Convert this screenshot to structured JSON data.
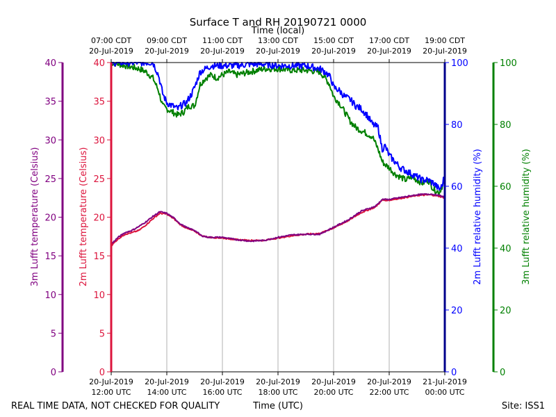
{
  "chart_data": {
    "type": "line",
    "title": "Surface T and RH 20190721 0000",
    "top_axis_label": "Time (local)",
    "xlabel": "Time (UTC)",
    "footer_left": "REAL TIME DATA, NOT CHECKED FOR QUALITY",
    "footer_right": "Site: ISS1",
    "x_range_hours": [
      12,
      24
    ],
    "bottom_ticks": [
      {
        "h": 12,
        "l1": "20-Jul-2019",
        "l2": "12:00 UTC"
      },
      {
        "h": 14,
        "l1": "20-Jul-2019",
        "l2": "14:00 UTC"
      },
      {
        "h": 16,
        "l1": "20-Jul-2019",
        "l2": "16:00 UTC"
      },
      {
        "h": 18,
        "l1": "20-Jul-2019",
        "l2": "18:00 UTC"
      },
      {
        "h": 20,
        "l1": "20-Jul-2019",
        "l2": "20:00 UTC"
      },
      {
        "h": 22,
        "l1": "20-Jul-2019",
        "l2": "22:00 UTC"
      },
      {
        "h": 24,
        "l1": "21-Jul-2019",
        "l2": "00:00 UTC"
      }
    ],
    "top_ticks": [
      {
        "h": 12,
        "l1": "07:00 CDT",
        "l2": "20-Jul-2019"
      },
      {
        "h": 14,
        "l1": "09:00 CDT",
        "l2": "20-Jul-2019"
      },
      {
        "h": 16,
        "l1": "11:00 CDT",
        "l2": "20-Jul-2019"
      },
      {
        "h": 18,
        "l1": "13:00 CDT",
        "l2": "20-Jul-2019"
      },
      {
        "h": 20,
        "l1": "15:00 CDT",
        "l2": "20-Jul-2019"
      },
      {
        "h": 22,
        "l1": "17:00 CDT",
        "l2": "20-Jul-2019"
      },
      {
        "h": 24,
        "l1": "19:00 CDT",
        "l2": "20-Jul-2019"
      }
    ],
    "axes": {
      "t3m": {
        "label": "3m Lufft temperature (Celsius)",
        "range": [
          0,
          40
        ],
        "ticks": [
          0,
          5,
          10,
          15,
          20,
          25,
          30,
          35,
          40
        ],
        "color": "#800080"
      },
      "t2m": {
        "label": "2m Lufft temperature (Celsius)",
        "range": [
          0,
          40
        ],
        "ticks": [
          0,
          5,
          10,
          15,
          20,
          25,
          30,
          35,
          40
        ],
        "color": "#dc143c"
      },
      "rh2m": {
        "label": "2m Lufft relative humidity (%)",
        "range": [
          0,
          100
        ],
        "ticks": [
          0,
          20,
          40,
          60,
          80,
          100
        ],
        "color": "#0000ff"
      },
      "rh3m": {
        "label": "3m Lufft relative humidity (%)",
        "range": [
          0,
          100
        ],
        "ticks": [
          0,
          20,
          40,
          60,
          80,
          100
        ],
        "color": "#008000"
      }
    },
    "series": [
      {
        "name": "2m Lufft temperature",
        "axis": "t2m",
        "color": "#dc143c",
        "points": [
          [
            12.0,
            16.3
          ],
          [
            12.25,
            17.2
          ],
          [
            12.5,
            17.8
          ],
          [
            12.75,
            18.0
          ],
          [
            13.0,
            18.3
          ],
          [
            13.25,
            19.0
          ],
          [
            13.5,
            19.8
          ],
          [
            13.75,
            20.5
          ],
          [
            14.0,
            20.4
          ],
          [
            14.25,
            19.8
          ],
          [
            14.5,
            19.0
          ],
          [
            14.75,
            18.5
          ],
          [
            15.0,
            18.2
          ],
          [
            15.25,
            17.6
          ],
          [
            15.5,
            17.4
          ],
          [
            16.0,
            17.3
          ],
          [
            16.5,
            17.1
          ],
          [
            17.0,
            17.0
          ],
          [
            17.5,
            17.0
          ],
          [
            18.0,
            17.3
          ],
          [
            18.5,
            17.6
          ],
          [
            19.0,
            17.8
          ],
          [
            19.5,
            17.9
          ],
          [
            20.0,
            18.6
          ],
          [
            20.5,
            19.5
          ],
          [
            21.0,
            20.6
          ],
          [
            21.5,
            21.3
          ],
          [
            21.75,
            22.2
          ],
          [
            22.0,
            22.2
          ],
          [
            22.5,
            22.5
          ],
          [
            23.0,
            22.8
          ],
          [
            23.5,
            22.9
          ],
          [
            23.8,
            22.7
          ],
          [
            24.0,
            22.5
          ]
        ]
      },
      {
        "name": "3m Lufft temperature",
        "axis": "t3m",
        "color": "#800080",
        "points": [
          [
            12.0,
            16.5
          ],
          [
            12.25,
            17.4
          ],
          [
            12.5,
            18.0
          ],
          [
            12.75,
            18.3
          ],
          [
            13.0,
            18.8
          ],
          [
            13.25,
            19.4
          ],
          [
            13.5,
            20.1
          ],
          [
            13.75,
            20.7
          ],
          [
            14.0,
            20.5
          ],
          [
            14.25,
            19.9
          ],
          [
            14.5,
            19.1
          ],
          [
            14.75,
            18.6
          ],
          [
            15.0,
            18.3
          ],
          [
            15.25,
            17.6
          ],
          [
            15.5,
            17.4
          ],
          [
            16.0,
            17.4
          ],
          [
            16.5,
            17.1
          ],
          [
            17.0,
            16.9
          ],
          [
            17.5,
            17.0
          ],
          [
            18.0,
            17.4
          ],
          [
            18.5,
            17.7
          ],
          [
            19.0,
            17.8
          ],
          [
            19.5,
            17.8
          ],
          [
            20.0,
            18.7
          ],
          [
            20.5,
            19.6
          ],
          [
            21.0,
            20.8
          ],
          [
            21.5,
            21.4
          ],
          [
            21.75,
            22.3
          ],
          [
            22.0,
            22.3
          ],
          [
            22.5,
            22.6
          ],
          [
            23.0,
            22.9
          ],
          [
            23.5,
            23.0
          ],
          [
            23.8,
            22.8
          ],
          [
            24.0,
            22.6
          ]
        ]
      },
      {
        "name": "2m Lufft relative humidity",
        "axis": "rh2m",
        "color": "#0000ff",
        "points": [
          [
            12.0,
            100
          ],
          [
            13.0,
            100
          ],
          [
            13.5,
            100
          ],
          [
            13.7,
            96
          ],
          [
            13.85,
            90
          ],
          [
            14.0,
            87
          ],
          [
            14.2,
            86
          ],
          [
            14.4,
            85
          ],
          [
            14.5,
            86
          ],
          [
            14.7,
            87
          ],
          [
            14.9,
            90
          ],
          [
            15.0,
            92
          ],
          [
            15.2,
            97
          ],
          [
            15.4,
            98
          ],
          [
            15.6,
            99
          ],
          [
            16.0,
            99
          ],
          [
            16.5,
            99
          ],
          [
            17.0,
            99.5
          ],
          [
            17.5,
            99.5
          ],
          [
            18.0,
            99
          ],
          [
            18.5,
            99
          ],
          [
            19.0,
            99
          ],
          [
            19.5,
            98
          ],
          [
            19.7,
            97
          ],
          [
            19.9,
            95
          ],
          [
            20.0,
            92
          ],
          [
            20.2,
            91
          ],
          [
            20.4,
            89
          ],
          [
            20.6,
            88
          ],
          [
            20.8,
            86
          ],
          [
            21.0,
            85
          ],
          [
            21.2,
            83
          ],
          [
            21.4,
            80
          ],
          [
            21.6,
            79
          ],
          [
            21.75,
            72
          ],
          [
            21.85,
            73
          ],
          [
            22.0,
            70
          ],
          [
            22.2,
            68
          ],
          [
            22.4,
            66
          ],
          [
            22.6,
            65
          ],
          [
            22.8,
            64
          ],
          [
            23.0,
            63
          ],
          [
            23.2,
            62
          ],
          [
            23.4,
            62
          ],
          [
            23.6,
            61
          ],
          [
            23.8,
            59
          ],
          [
            23.9,
            60
          ],
          [
            24.0,
            64
          ]
        ]
      },
      {
        "name": "3m Lufft relative humidity",
        "axis": "rh3m",
        "color": "#008000",
        "points": [
          [
            12.0,
            100
          ],
          [
            12.5,
            99
          ],
          [
            13.0,
            98
          ],
          [
            13.25,
            97
          ],
          [
            13.5,
            95
          ],
          [
            13.7,
            91
          ],
          [
            13.85,
            86
          ],
          [
            14.0,
            85
          ],
          [
            14.2,
            84
          ],
          [
            14.4,
            83
          ],
          [
            14.6,
            84
          ],
          [
            14.8,
            86
          ],
          [
            15.0,
            86
          ],
          [
            15.2,
            93
          ],
          [
            15.4,
            95
          ],
          [
            15.6,
            96
          ],
          [
            15.8,
            95
          ],
          [
            16.0,
            96
          ],
          [
            16.25,
            97
          ],
          [
            16.5,
            96
          ],
          [
            17.0,
            97
          ],
          [
            17.5,
            98
          ],
          [
            18.0,
            98
          ],
          [
            18.5,
            97.5
          ],
          [
            19.0,
            97.5
          ],
          [
            19.5,
            97
          ],
          [
            19.7,
            95
          ],
          [
            19.85,
            93
          ],
          [
            20.0,
            89
          ],
          [
            20.2,
            87
          ],
          [
            20.4,
            84
          ],
          [
            20.6,
            81
          ],
          [
            20.8,
            79
          ],
          [
            21.0,
            78
          ],
          [
            21.2,
            77
          ],
          [
            21.4,
            76
          ],
          [
            21.6,
            72
          ],
          [
            21.75,
            68
          ],
          [
            21.85,
            67
          ],
          [
            22.0,
            66
          ],
          [
            22.2,
            64
          ],
          [
            22.4,
            63
          ],
          [
            22.6,
            62
          ],
          [
            22.8,
            63
          ],
          [
            23.0,
            62
          ],
          [
            23.2,
            61
          ],
          [
            23.4,
            62
          ],
          [
            23.6,
            59
          ],
          [
            23.8,
            58
          ],
          [
            23.9,
            60
          ],
          [
            24.0,
            62
          ]
        ]
      }
    ]
  }
}
